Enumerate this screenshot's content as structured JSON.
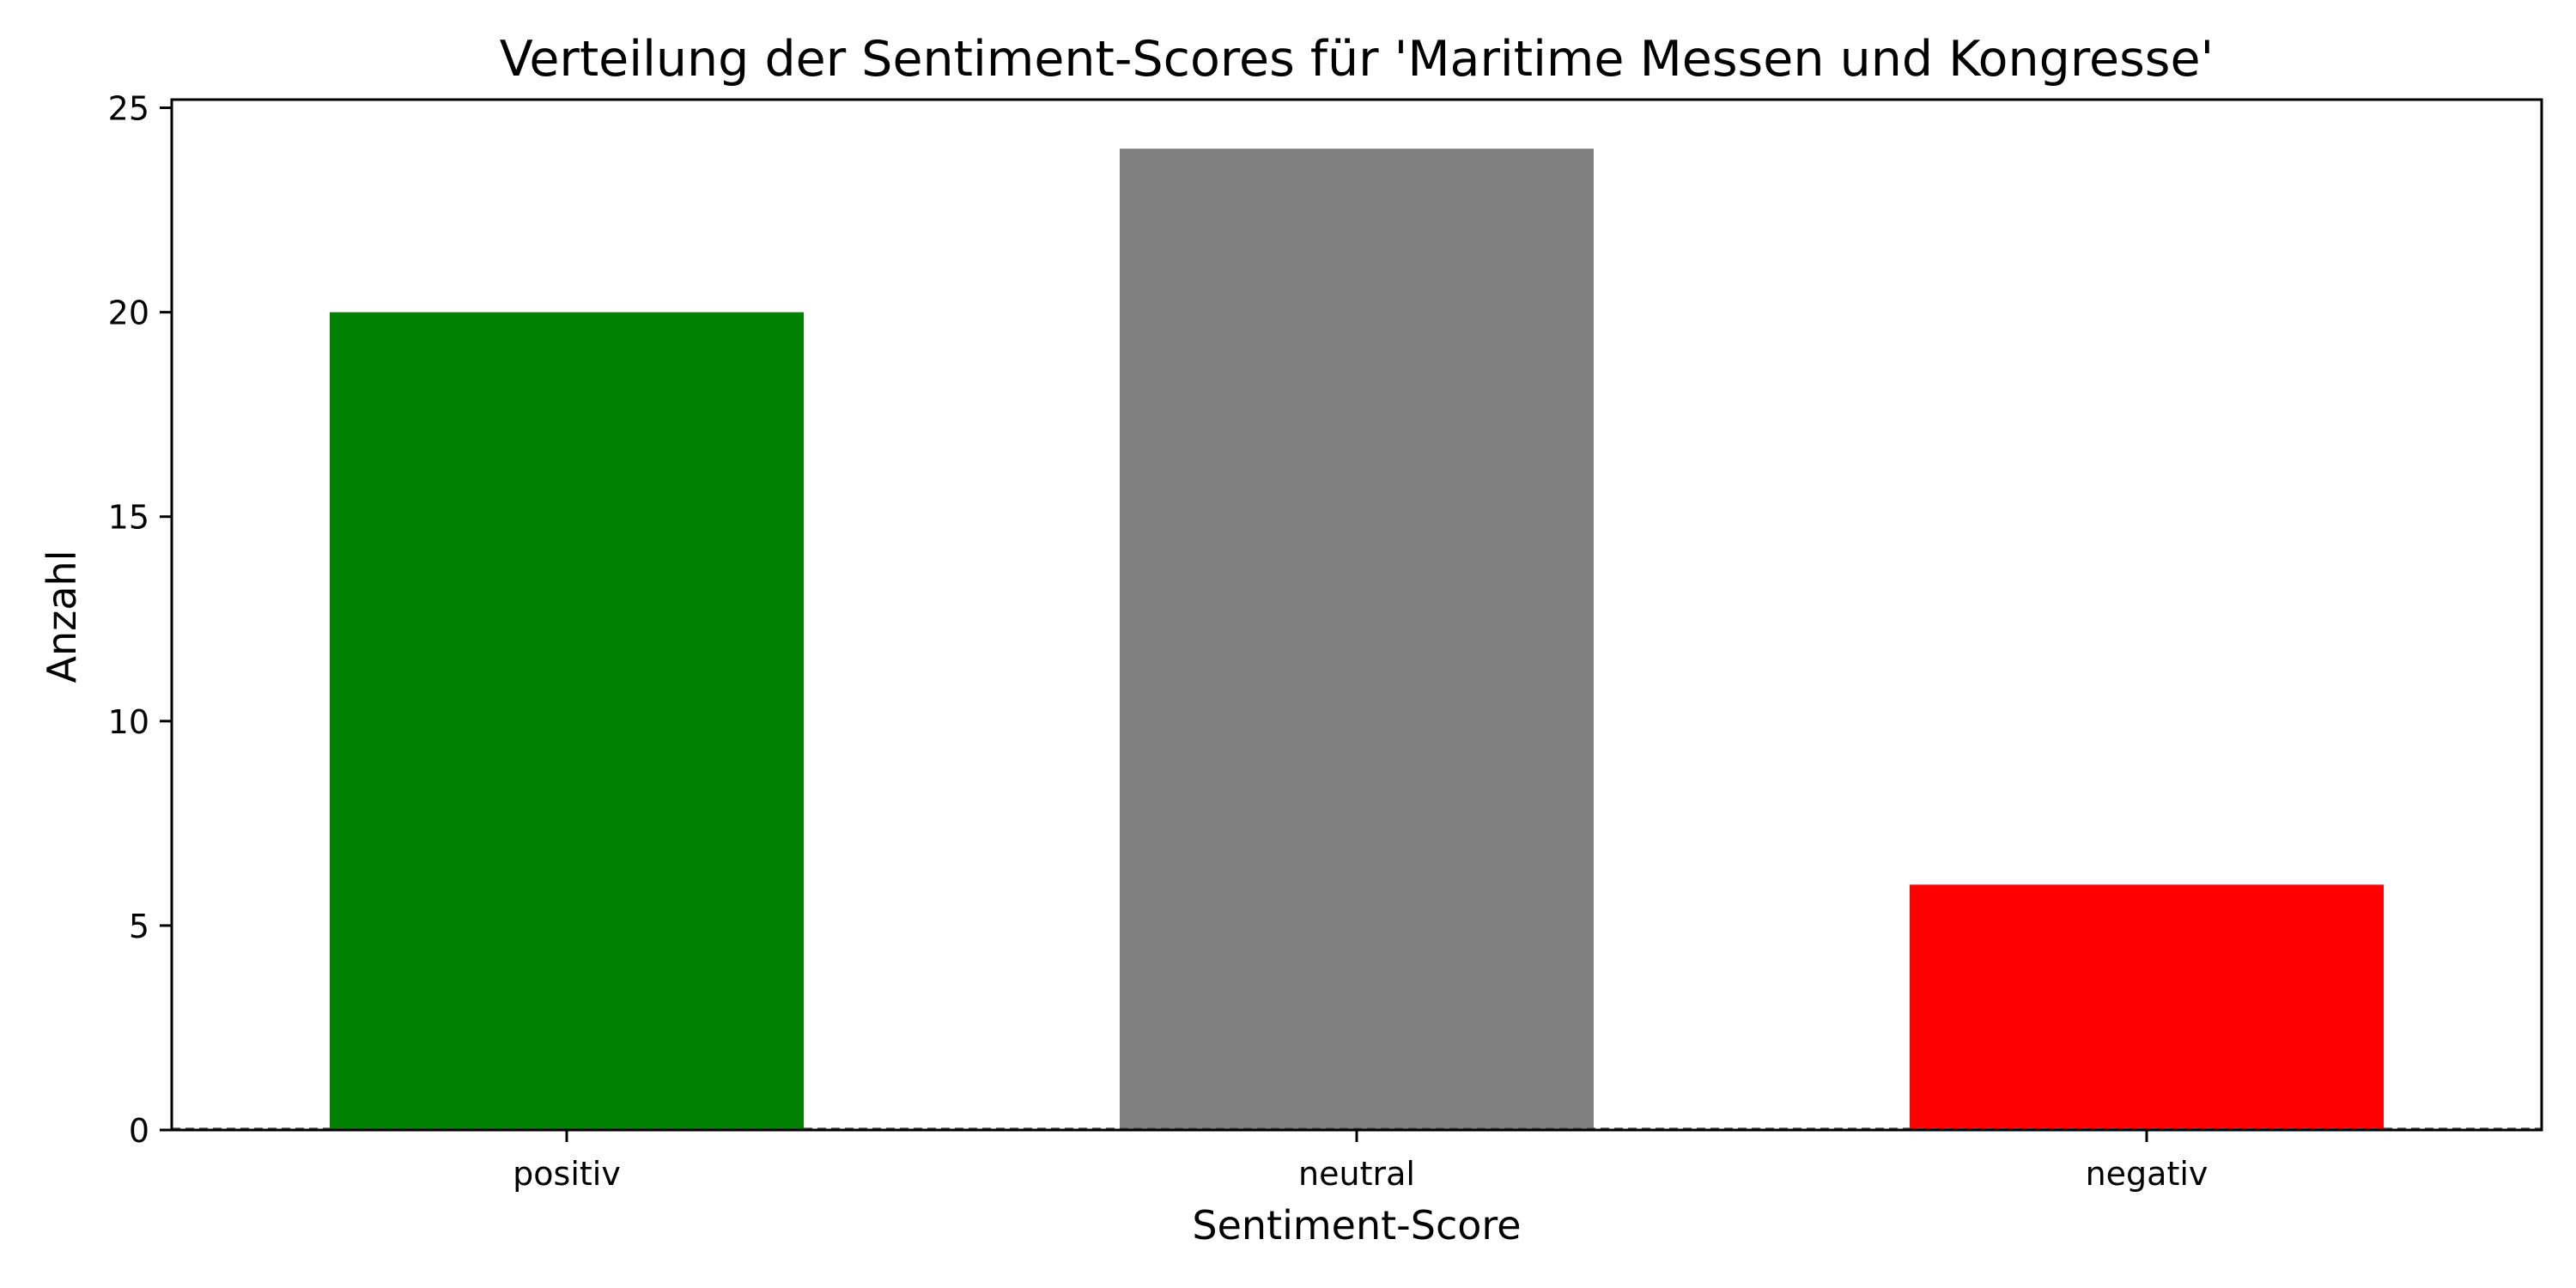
{
  "chart_data": {
    "type": "bar",
    "title": "Verteilung der Sentiment-Scores für 'Maritime Messen und Kongresse'",
    "xlabel": "Sentiment-Score",
    "ylabel": "Anzahl",
    "categories": [
      "positiv",
      "neutral",
      "negativ"
    ],
    "values": [
      20,
      24,
      6
    ],
    "colors": [
      "#008000",
      "#808080",
      "#ff0000"
    ],
    "ylim": [
      0,
      25.2
    ],
    "yticks": [
      0,
      5,
      10,
      15,
      20,
      25
    ],
    "grid": false,
    "legend": "none",
    "reference_line": {
      "y": 0,
      "style": "dashed",
      "color": "#555555"
    }
  }
}
